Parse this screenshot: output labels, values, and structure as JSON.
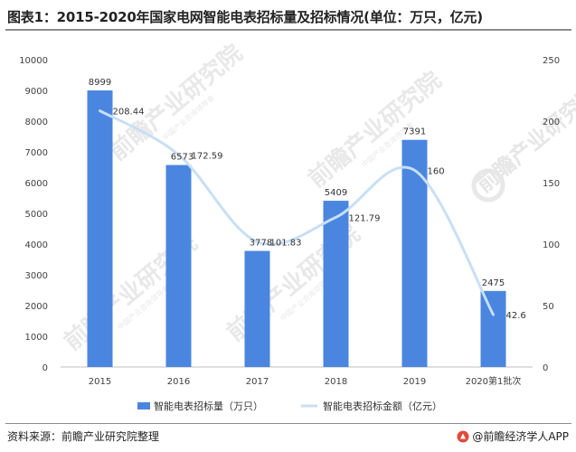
{
  "title": "图表1：2015-2020年国家电网智能电表招标量及招标情况(单位：万只，亿元)",
  "footer": {
    "source": "资料来源：前瞻产业研究院整理",
    "brand": "@前瞻经济学人APP"
  },
  "watermark": {
    "text": "前瞻产业研究院",
    "subtext": "中国产业咨询领导者"
  },
  "colors": {
    "bar": "#4a86e0",
    "line": "#c9dff5",
    "axis_text": "#404040",
    "watermark": "#e6e6e6"
  },
  "chart_data": {
    "type": "bar",
    "categories": [
      "2015",
      "2016",
      "2017",
      "2018",
      "2019",
      "2020第1批次"
    ],
    "series": [
      {
        "name": "智能电表招标量（万只）",
        "type": "bar",
        "axis": "left",
        "values": [
          8999,
          6573,
          3778,
          5409,
          7391,
          2475
        ],
        "labels": [
          "8999",
          "6573",
          "3778",
          "5409",
          "7391",
          "2475"
        ]
      },
      {
        "name": "智能电表招标金额（亿元）",
        "type": "line",
        "axis": "right",
        "values": [
          208.44,
          172.59,
          101.83,
          121.79,
          160,
          42.6
        ],
        "labels": [
          "208.44",
          "172.59",
          "101.83",
          "121.79",
          "160",
          "42.6"
        ]
      }
    ],
    "y_left": {
      "min": 0,
      "max": 10000,
      "ticks": [
        "0",
        "1000",
        "2000",
        "3000",
        "4000",
        "5000",
        "6000",
        "7000",
        "8000",
        "9000",
        "10000"
      ]
    },
    "y_right": {
      "min": 0,
      "max": 250,
      "ticks": [
        "0",
        "50",
        "100",
        "150",
        "200",
        "250"
      ]
    },
    "grid": false,
    "legend_position": "bottom"
  }
}
